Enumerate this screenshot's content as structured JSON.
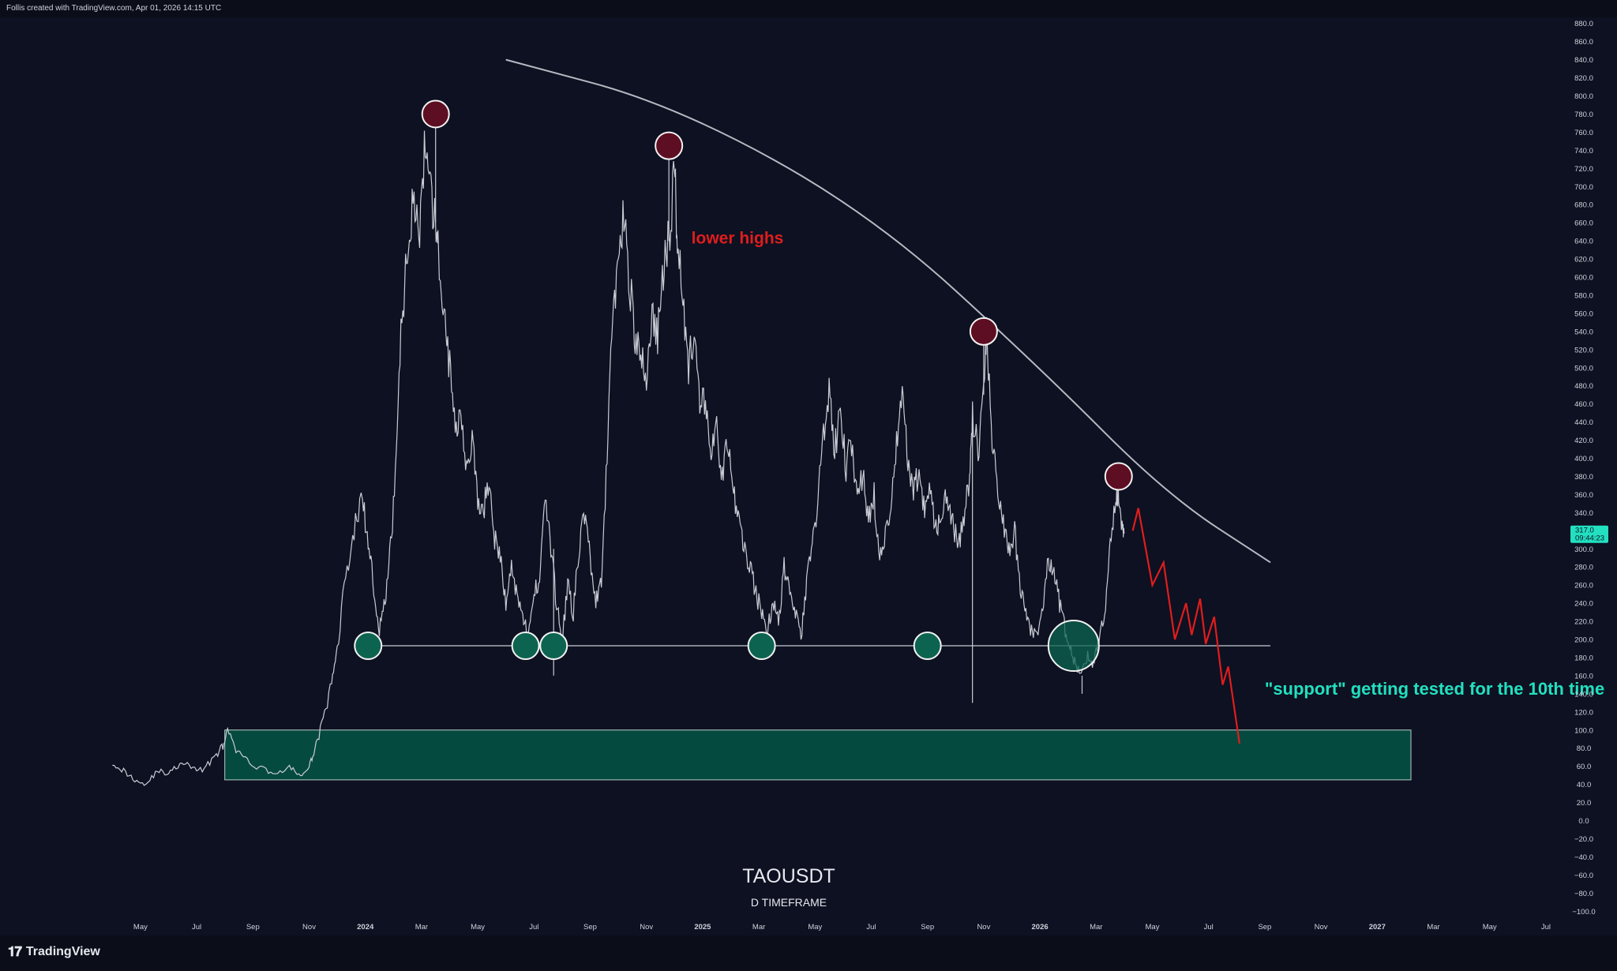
{
  "header": {
    "text": "Follis created with TradingView.com, Apr 01, 2026 14:15 UTC"
  },
  "footer": {
    "logo_text": "TradingView",
    "logo_icon": "tradingview-logo-icon"
  },
  "chart_data": {
    "type": "line",
    "symbol": "TAOUSDT",
    "timeframe": "D TIMEFRAME",
    "y_axis": {
      "range": [
        -100,
        880
      ],
      "ticks": [
        "880.0",
        "860.0",
        "840.0",
        "820.0",
        "800.0",
        "780.0",
        "760.0",
        "740.0",
        "720.0",
        "700.0",
        "680.0",
        "660.0",
        "640.0",
        "620.0",
        "600.0",
        "580.0",
        "560.0",
        "540.0",
        "520.0",
        "500.0",
        "480.0",
        "460.0",
        "440.0",
        "420.0",
        "400.0",
        "380.0",
        "360.0",
        "340.0",
        "320.0",
        "300.0",
        "280.0",
        "260.0",
        "240.0",
        "220.0",
        "200.0",
        "180.0",
        "160.0",
        "140.0",
        "120.0",
        "100.0",
        "80.0",
        "60.0",
        "40.0",
        "20.0",
        "0.0",
        "−20.0",
        "−40.0",
        "−60.0",
        "−80.0",
        "−100.0"
      ]
    },
    "x_axis": {
      "ticks": [
        {
          "label": "May",
          "t": 4
        },
        {
          "label": "Jul",
          "t": 6
        },
        {
          "label": "Sep",
          "t": 8
        },
        {
          "label": "Nov",
          "t": 10
        },
        {
          "label": "2024",
          "t": 12
        },
        {
          "label": "Mar",
          "t": 14
        },
        {
          "label": "May",
          "t": 16
        },
        {
          "label": "Jul",
          "t": 18
        },
        {
          "label": "Sep",
          "t": 20
        },
        {
          "label": "Nov",
          "t": 22
        },
        {
          "label": "2025",
          "t": 24
        },
        {
          "label": "Mar",
          "t": 26
        },
        {
          "label": "May",
          "t": 28
        },
        {
          "label": "Jul",
          "t": 30
        },
        {
          "label": "Sep",
          "t": 32
        },
        {
          "label": "Nov",
          "t": 34
        },
        {
          "label": "2026",
          "t": 36
        },
        {
          "label": "Mar",
          "t": 38
        },
        {
          "label": "May",
          "t": 40
        },
        {
          "label": "Jul",
          "t": 42
        },
        {
          "label": "Sep",
          "t": 44
        },
        {
          "label": "Nov",
          "t": 46
        },
        {
          "label": "2027",
          "t": 48
        },
        {
          "label": "Mar",
          "t": 50
        },
        {
          "label": "May",
          "t": 52
        },
        {
          "label": "Jul",
          "t": 54
        }
      ],
      "bold": [
        "2024",
        "2025",
        "2026",
        "2027"
      ]
    },
    "series": [
      {
        "values": [
          [
            3.0,
            65
          ],
          [
            3.4,
            55
          ],
          [
            3.8,
            45
          ],
          [
            4.2,
            40
          ],
          [
            4.6,
            55
          ],
          [
            5.0,
            52
          ],
          [
            5.4,
            62
          ],
          [
            5.8,
            60
          ],
          [
            6.2,
            55
          ],
          [
            6.6,
            70
          ],
          [
            6.9,
            80
          ],
          [
            7.1,
            98
          ],
          [
            7.4,
            78
          ],
          [
            7.8,
            65
          ],
          [
            8.3,
            58
          ],
          [
            8.8,
            52
          ],
          [
            9.3,
            58
          ],
          [
            9.7,
            50
          ],
          [
            10.0,
            58
          ],
          [
            10.2,
            80
          ],
          [
            10.5,
            110
          ],
          [
            10.8,
            150
          ],
          [
            11.0,
            190
          ],
          [
            11.3,
            270
          ],
          [
            11.6,
            320
          ],
          [
            11.9,
            360
          ],
          [
            12.1,
            300
          ],
          [
            12.3,
            260
          ],
          [
            12.5,
            210
          ],
          [
            12.7,
            240
          ],
          [
            12.9,
            300
          ],
          [
            13.1,
            400
          ],
          [
            13.3,
            560
          ],
          [
            13.5,
            620
          ],
          [
            13.7,
            700
          ],
          [
            13.9,
            640
          ],
          [
            14.1,
            730
          ],
          [
            14.3,
            690
          ],
          [
            14.5,
            660
          ],
          [
            14.6,
            620
          ],
          [
            14.8,
            560
          ],
          [
            15.0,
            500
          ],
          [
            15.2,
            430
          ],
          [
            15.4,
            460
          ],
          [
            15.6,
            390
          ],
          [
            15.8,
            420
          ],
          [
            16.0,
            350
          ],
          [
            16.2,
            340
          ],
          [
            16.4,
            380
          ],
          [
            16.6,
            310
          ],
          [
            16.8,
            290
          ],
          [
            17.0,
            240
          ],
          [
            17.2,
            280
          ],
          [
            17.4,
            250
          ],
          [
            17.6,
            230
          ],
          [
            17.8,
            200
          ],
          [
            18.0,
            250
          ],
          [
            18.2,
            270
          ],
          [
            18.4,
            360
          ],
          [
            18.6,
            300
          ],
          [
            18.8,
            240
          ],
          [
            19.0,
            200
          ],
          [
            19.2,
            260
          ],
          [
            19.4,
            230
          ],
          [
            19.6,
            300
          ],
          [
            19.8,
            340
          ],
          [
            20.0,
            290
          ],
          [
            20.2,
            240
          ],
          [
            20.4,
            260
          ],
          [
            20.6,
            400
          ],
          [
            20.8,
            560
          ],
          [
            21.0,
            620
          ],
          [
            21.2,
            670
          ],
          [
            21.4,
            600
          ],
          [
            21.6,
            530
          ],
          [
            21.8,
            510
          ],
          [
            22.0,
            490
          ],
          [
            22.2,
            560
          ],
          [
            22.4,
            530
          ],
          [
            22.6,
            610
          ],
          [
            22.8,
            640
          ],
          [
            23.0,
            720
          ],
          [
            23.1,
            650
          ],
          [
            23.3,
            580
          ],
          [
            23.5,
            500
          ],
          [
            23.7,
            540
          ],
          [
            23.9,
            450
          ],
          [
            24.1,
            470
          ],
          [
            24.3,
            400
          ],
          [
            24.5,
            430
          ],
          [
            24.7,
            380
          ],
          [
            24.9,
            420
          ],
          [
            25.1,
            360
          ],
          [
            25.3,
            330
          ],
          [
            25.5,
            300
          ],
          [
            25.7,
            280
          ],
          [
            25.9,
            250
          ],
          [
            26.1,
            230
          ],
          [
            26.3,
            210
          ],
          [
            26.5,
            240
          ],
          [
            26.7,
            220
          ],
          [
            26.9,
            280
          ],
          [
            27.1,
            260
          ],
          [
            27.3,
            230
          ],
          [
            27.5,
            200
          ],
          [
            27.7,
            260
          ],
          [
            27.9,
            310
          ],
          [
            28.1,
            350
          ],
          [
            28.3,
            430
          ],
          [
            28.5,
            470
          ],
          [
            28.7,
            410
          ],
          [
            28.9,
            450
          ],
          [
            29.1,
            390
          ],
          [
            29.3,
            420
          ],
          [
            29.5,
            360
          ],
          [
            29.7,
            380
          ],
          [
            29.9,
            330
          ],
          [
            30.1,
            360
          ],
          [
            30.3,
            290
          ],
          [
            30.5,
            310
          ],
          [
            30.7,
            350
          ],
          [
            30.9,
            420
          ],
          [
            31.1,
            460
          ],
          [
            31.3,
            400
          ],
          [
            31.5,
            370
          ],
          [
            31.7,
            380
          ],
          [
            31.9,
            340
          ],
          [
            32.1,
            370
          ],
          [
            32.3,
            320
          ],
          [
            32.5,
            340
          ],
          [
            32.7,
            360
          ],
          [
            32.9,
            330
          ],
          [
            33.1,
            300
          ],
          [
            33.3,
            340
          ],
          [
            33.5,
            380
          ],
          [
            33.6,
            450
          ],
          [
            33.8,
            410
          ],
          [
            34.0,
            470
          ],
          [
            34.1,
            540
          ],
          [
            34.3,
            420
          ],
          [
            34.5,
            360
          ],
          [
            34.7,
            330
          ],
          [
            34.9,
            300
          ],
          [
            35.1,
            320
          ],
          [
            35.3,
            260
          ],
          [
            35.5,
            230
          ],
          [
            35.7,
            210
          ],
          [
            35.9,
            200
          ],
          [
            36.1,
            230
          ],
          [
            36.3,
            290
          ],
          [
            36.5,
            270
          ],
          [
            36.7,
            240
          ],
          [
            36.9,
            210
          ],
          [
            37.1,
            190
          ],
          [
            37.3,
            170
          ],
          [
            37.5,
            160
          ],
          [
            37.7,
            180
          ],
          [
            37.9,
            175
          ],
          [
            38.1,
            200
          ],
          [
            38.3,
            230
          ],
          [
            38.5,
            300
          ],
          [
            38.7,
            350
          ],
          [
            38.8,
            365
          ],
          [
            38.95,
            320
          ],
          [
            39.0,
            317
          ]
        ]
      }
    ],
    "current_price": {
      "label": "317.0",
      "countdown": "09:44:23",
      "value": 317
    },
    "annotations": {
      "title_text": "lower highs",
      "support_text": "\"support\" getting tested for the 10th time",
      "support_level": 193,
      "demand_zone": [
        45,
        100
      ],
      "resistance_curve": [
        [
          17.0,
          840
        ],
        [
          23.0,
          790
        ],
        [
          30.0,
          670
        ],
        [
          36.0,
          500
        ],
        [
          40.5,
          360
        ],
        [
          44.2,
          285
        ]
      ],
      "lower_high_markers": [
        [
          14.5,
          780
        ],
        [
          22.8,
          745
        ],
        [
          34.0,
          540
        ],
        [
          38.8,
          380
        ]
      ],
      "support_touches": [
        [
          12.1,
          193
        ],
        [
          17.7,
          193
        ],
        [
          18.7,
          193
        ],
        [
          26.1,
          193
        ],
        [
          32.0,
          193
        ],
        [
          37.2,
          193
        ]
      ],
      "projection": [
        [
          39.3,
          320
        ],
        [
          39.5,
          345
        ],
        [
          40.0,
          260
        ],
        [
          40.4,
          285
        ],
        [
          40.8,
          200
        ],
        [
          41.2,
          240
        ],
        [
          41.4,
          205
        ],
        [
          41.7,
          245
        ],
        [
          41.9,
          195
        ],
        [
          42.2,
          225
        ],
        [
          42.5,
          150
        ],
        [
          42.7,
          170
        ],
        [
          43.1,
          85
        ]
      ]
    },
    "colors": {
      "background": "#0d1121",
      "price_line": "#c9ccd4",
      "resistance_curve": "#c9ccd4",
      "lower_high_marker": "#5e0e22",
      "support_marker": "#0c6450",
      "support_line": "#c9ccd4",
      "demand_zone": "#054a3f",
      "projection": "#e01d1d",
      "title_text": "#e01d1d",
      "support_text": "#22e0c0",
      "price_label_bg": "#22e0c0"
    }
  }
}
